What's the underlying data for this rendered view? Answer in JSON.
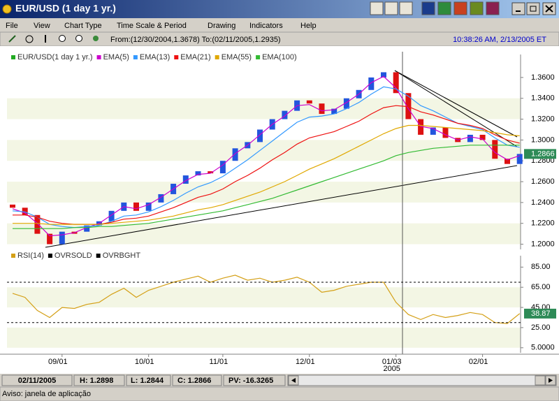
{
  "window": {
    "title": "EUR/USD (1 day  1 yr.)"
  },
  "menu": [
    "File",
    "View",
    "Chart Type",
    "Time Scale & Period",
    "Drawing",
    "Indicators",
    "Help"
  ],
  "toolbar": {
    "range": "From:(12/30/2004,1.3678) To:(02/11/2005,1.2935)",
    "clock": "10:38:26 AM, 2/13/2005 ET"
  },
  "chart_data": [
    {
      "type": "candlestick",
      "categories": [
        null,
        null,
        null,
        null,
        "09/01",
        null,
        null,
        null,
        null,
        null,
        null,
        "10/01",
        null,
        null,
        null,
        null,
        null,
        "11/01",
        null,
        null,
        null,
        null,
        null,
        null,
        "12/01",
        null,
        null,
        null,
        null,
        null,
        null,
        "01/03",
        null,
        null,
        null,
        null,
        null,
        null,
        "02/01",
        null,
        null,
        null
      ],
      "year_label": "2005",
      "ylim": [
        1.195,
        1.374
      ],
      "yticks": [
        {
          "value": 1.2,
          "label": "1.2000"
        },
        {
          "value": 1.22,
          "label": "1.2200"
        },
        {
          "value": 1.24,
          "label": "1.2400"
        },
        {
          "value": 1.26,
          "label": "1.2600"
        },
        {
          "value": 1.28,
          "label": "1.2800"
        },
        {
          "value": 1.3,
          "label": "1.3000"
        },
        {
          "value": 1.32,
          "label": "1.3200"
        },
        {
          "value": 1.34,
          "label": "1.3400"
        },
        {
          "value": 1.36,
          "label": "1.3600"
        }
      ],
      "last_value": 1.2866,
      "series": [
        {
          "name": "EUR/USD(1 day  1 yr.)",
          "color": "#22aa22",
          "up_color": "#2255dd",
          "down_color": "#dd1111",
          "open": [
            1.238,
            1.235,
            1.228,
            1.21,
            1.2,
            1.212,
            1.212,
            1.218,
            1.222,
            1.232,
            1.24,
            1.232,
            1.24,
            1.248,
            1.258,
            1.266,
            1.27,
            1.268,
            1.28,
            1.292,
            1.298,
            1.31,
            1.32,
            1.328,
            1.338,
            1.335,
            1.325,
            1.33,
            1.34,
            1.348,
            1.36,
            1.365,
            1.345,
            1.32,
            1.305,
            1.312,
            1.302,
            1.298,
            1.305,
            1.3,
            1.282,
            1.277
          ],
          "close": [
            1.235,
            1.228,
            1.21,
            1.2,
            1.212,
            1.21,
            1.218,
            1.222,
            1.232,
            1.24,
            1.232,
            1.24,
            1.248,
            1.258,
            1.266,
            1.27,
            1.268,
            1.28,
            1.292,
            1.298,
            1.31,
            1.32,
            1.328,
            1.338,
            1.335,
            1.325,
            1.33,
            1.34,
            1.348,
            1.36,
            1.365,
            1.345,
            1.32,
            1.305,
            1.312,
            1.302,
            1.298,
            1.305,
            1.3,
            1.282,
            1.277,
            1.2866
          ]
        },
        {
          "name": "EMA(5)",
          "color": "#cc00cc",
          "values": [
            1.234,
            1.23,
            1.22,
            1.208,
            1.209,
            1.211,
            1.216,
            1.22,
            1.228,
            1.236,
            1.234,
            1.238,
            1.245,
            1.253,
            1.261,
            1.267,
            1.268,
            1.276,
            1.287,
            1.295,
            1.305,
            1.315,
            1.323,
            1.333,
            1.334,
            1.328,
            1.329,
            1.336,
            1.344,
            1.355,
            1.361,
            1.35,
            1.33,
            1.313,
            1.311,
            1.305,
            1.3,
            1.303,
            1.301,
            1.288,
            1.281,
            1.285
          ]
        },
        {
          "name": "EMA(13)",
          "color": "#3399ff",
          "values": [
            1.232,
            1.231,
            1.226,
            1.219,
            1.217,
            1.216,
            1.217,
            1.218,
            1.222,
            1.227,
            1.228,
            1.231,
            1.236,
            1.242,
            1.249,
            1.255,
            1.259,
            1.265,
            1.273,
            1.281,
            1.29,
            1.299,
            1.308,
            1.317,
            1.322,
            1.323,
            1.325,
            1.33,
            1.336,
            1.344,
            1.351,
            1.349,
            1.342,
            1.333,
            1.328,
            1.322,
            1.316,
            1.313,
            1.31,
            1.302,
            1.295,
            1.293
          ]
        },
        {
          "name": "EMA(21)",
          "color": "#ee1111",
          "values": [
            1.228,
            1.228,
            1.226,
            1.222,
            1.22,
            1.219,
            1.219,
            1.219,
            1.221,
            1.224,
            1.225,
            1.227,
            1.231,
            1.235,
            1.24,
            1.245,
            1.248,
            1.253,
            1.26,
            1.266,
            1.273,
            1.281,
            1.288,
            1.296,
            1.302,
            1.305,
            1.308,
            1.313,
            1.318,
            1.325,
            1.331,
            1.333,
            1.332,
            1.327,
            1.324,
            1.32,
            1.316,
            1.314,
            1.311,
            1.305,
            1.3,
            1.297
          ]
        },
        {
          "name": "EMA(55)",
          "color": "#e0a800",
          "values": [
            1.22,
            1.22,
            1.22,
            1.219,
            1.219,
            1.219,
            1.219,
            1.219,
            1.22,
            1.221,
            1.222,
            1.223,
            1.225,
            1.227,
            1.23,
            1.233,
            1.235,
            1.238,
            1.242,
            1.246,
            1.25,
            1.255,
            1.26,
            1.266,
            1.272,
            1.277,
            1.282,
            1.288,
            1.294,
            1.3,
            1.306,
            1.311,
            1.314,
            1.314,
            1.313,
            1.312,
            1.311,
            1.31,
            1.309,
            1.307,
            1.305,
            1.304
          ]
        },
        {
          "name": "EMA(100)",
          "color": "#33bb33",
          "values": [
            1.215,
            1.215,
            1.215,
            1.215,
            1.215,
            1.216,
            1.216,
            1.217,
            1.217,
            1.218,
            1.219,
            1.22,
            1.222,
            1.224,
            1.226,
            1.228,
            1.23,
            1.232,
            1.235,
            1.238,
            1.241,
            1.244,
            1.248,
            1.252,
            1.256,
            1.26,
            1.264,
            1.268,
            1.272,
            1.276,
            1.28,
            1.285,
            1.288,
            1.29,
            1.292,
            1.293,
            1.294,
            1.295,
            1.295,
            1.295,
            1.295,
            1.295
          ]
        }
      ]
    },
    {
      "type": "line",
      "ylim": [
        0,
        88
      ],
      "yticks": [
        {
          "value": 5,
          "label": "5.0000"
        },
        {
          "value": 25,
          "label": "25.00"
        },
        {
          "value": 45,
          "label": "45.00"
        },
        {
          "value": 65,
          "label": "65.00"
        },
        {
          "value": 85,
          "label": "85.00"
        }
      ],
      "last_value": 38.87,
      "series": [
        {
          "name": "RSI(14)",
          "color": "#d4a017",
          "values": [
            59,
            55,
            42,
            35,
            45,
            44,
            48,
            50,
            58,
            64,
            55,
            62,
            66,
            70,
            73,
            76,
            70,
            74,
            77,
            72,
            74,
            70,
            72,
            75,
            70,
            60,
            62,
            66,
            68,
            70,
            70,
            50,
            38,
            33,
            38,
            35,
            37,
            40,
            38,
            30,
            29,
            38.87
          ]
        },
        {
          "name": "OVRSOLD",
          "color": "#000000",
          "level": 30
        },
        {
          "name": "OVRBGHT",
          "color": "#000000",
          "level": 70
        }
      ]
    }
  ],
  "status": {
    "date": "02/11/2005",
    "high": "H: 1.2898",
    "low": "L: 1.2844",
    "close": "C: 1.2866",
    "pv": "PV: -16.3265"
  },
  "footer": "Aviso: janela de aplicação"
}
